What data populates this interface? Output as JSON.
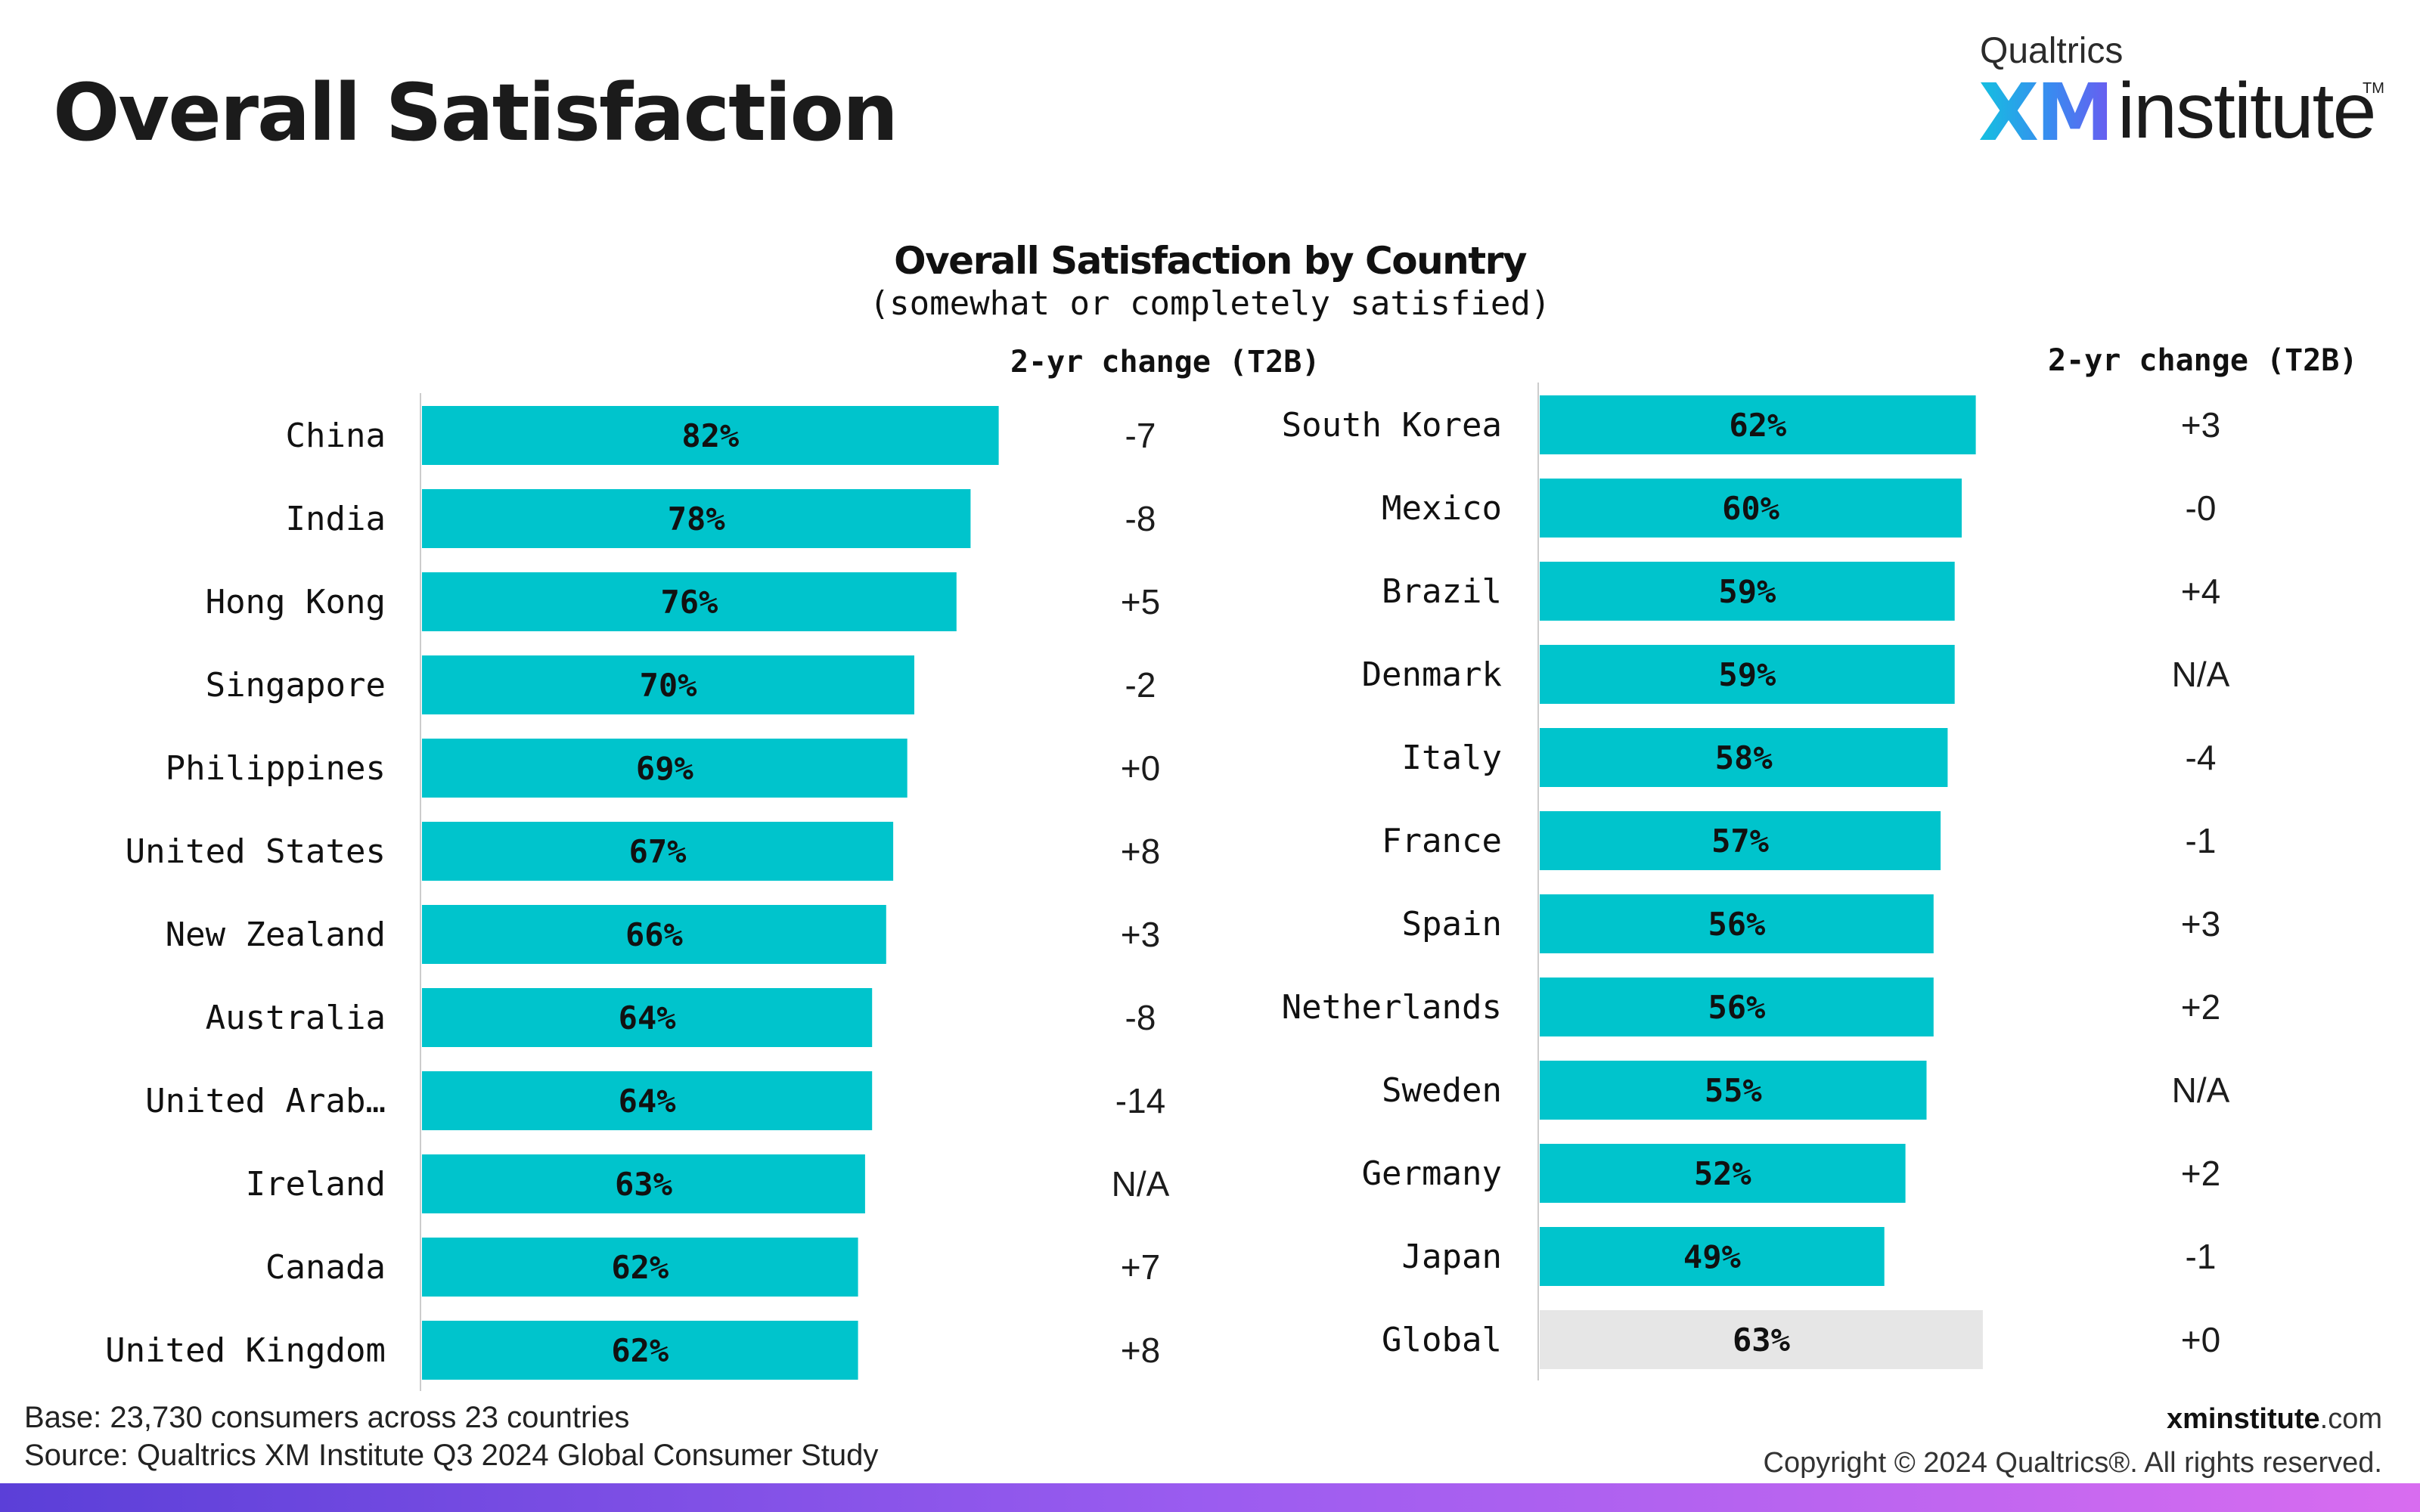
{
  "page": {
    "title": "Overall Satisfaction"
  },
  "logo": {
    "company": "Qualtrics",
    "xm": "XM",
    "institute": "institute",
    "tm": "TM"
  },
  "chart_data": {
    "type": "bar",
    "orientation": "horizontal",
    "title": "Overall Satisfaction by Country",
    "subtitle": "(somewhat or completely satisfied)",
    "change_header": "2-yr change (T2B)",
    "xlim": [
      0,
      100
    ],
    "bar_color": "#00c4cc",
    "global_bar_color": "#e6e6e6",
    "panels": [
      {
        "categories": [
          "China",
          "India",
          "Hong Kong",
          "Singapore",
          "Philippines",
          "United States",
          "New Zealand",
          "Australia",
          "United Arab…",
          "Ireland",
          "Canada",
          "United Kingdom"
        ],
        "values": [
          82,
          78,
          76,
          70,
          69,
          67,
          66,
          64,
          64,
          63,
          62,
          62
        ],
        "value_labels": [
          "82%",
          "78%",
          "76%",
          "70%",
          "69%",
          "67%",
          "66%",
          "64%",
          "64%",
          "63%",
          "62%",
          "62%"
        ],
        "changes": [
          "-7",
          "-8",
          "+5",
          "-2",
          "+0",
          "+8",
          "+3",
          "-8",
          "-14",
          "N/A",
          "+7",
          "+8"
        ]
      },
      {
        "categories": [
          "South Korea",
          "Mexico",
          "Brazil",
          "Denmark",
          "Italy",
          "France",
          "Spain",
          "Netherlands",
          "Sweden",
          "Germany",
          "Japan",
          "Global"
        ],
        "values": [
          62,
          60,
          59,
          59,
          58,
          57,
          56,
          56,
          55,
          52,
          49,
          63
        ],
        "value_labels": [
          "62%",
          "60%",
          "59%",
          "59%",
          "58%",
          "57%",
          "56%",
          "56%",
          "55%",
          "52%",
          "49%",
          "63%"
        ],
        "changes": [
          "+3",
          "-0",
          "+4",
          "N/A",
          "-4",
          "-1",
          "+3",
          "+2",
          "N/A",
          "+2",
          "-1",
          "+0"
        ]
      }
    ]
  },
  "footer": {
    "base": "Base: 23,730 consumers across 23 countries",
    "source": "Source: Qualtrics XM Institute Q3 2024 Global Consumer Study",
    "site_bold": "xminstitute",
    "site_rest": ".com",
    "copyright": "Copyright © 2024 Qualtrics®. All rights reserved."
  }
}
